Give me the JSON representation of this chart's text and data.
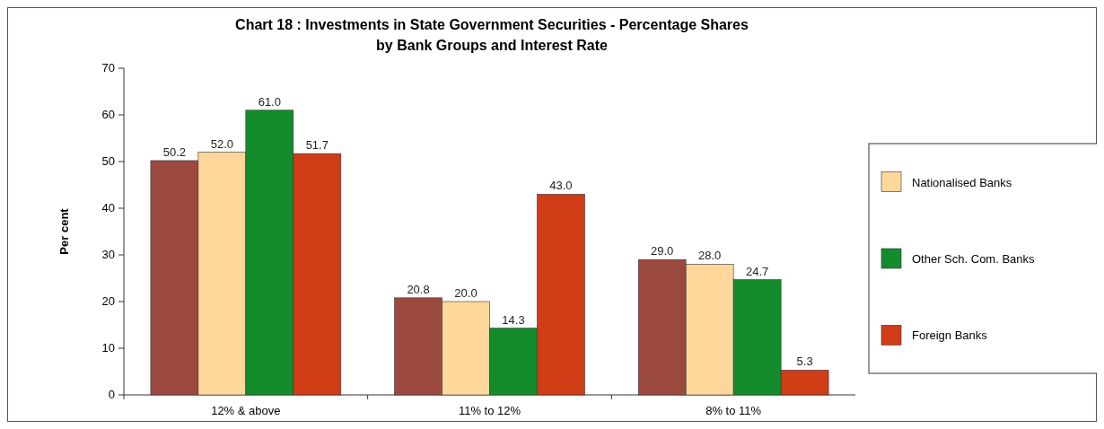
{
  "chart_data": {
    "type": "bar",
    "title": "Chart 18 : Investments in State Government Securities - Percentage Shares by Bank Groups and Interest Rate",
    "ylabel": "Per cent",
    "categories": [
      "12% & above",
      "11% to 12%",
      "8% to 11%"
    ],
    "series": [
      {
        "color": "#9c4a40",
        "values": [
          50.2,
          20.8,
          29.0
        ],
        "value_labels": [
          "50.2",
          "20.8",
          "29.0"
        ]
      },
      {
        "name": "Nationalised Banks",
        "color": "#ffd79a",
        "values": [
          52.0,
          20.0,
          28.0
        ],
        "value_labels": [
          "52.0",
          "20.0",
          "28.0"
        ]
      },
      {
        "name": "Other Sch. Com. Banks",
        "color": "#148c2c",
        "values": [
          61.0,
          14.3,
          24.7
        ],
        "value_labels": [
          "61.0",
          "14.3",
          "24.7"
        ]
      },
      {
        "name": "Foreign Banks",
        "color": "#d03c16",
        "values": [
          51.7,
          43.0,
          5.3
        ],
        "value_labels": [
          "51.7",
          "43.0",
          "5.3"
        ]
      }
    ],
    "ylim": [
      0,
      70
    ],
    "yticks": [
      0,
      10,
      20,
      30,
      40,
      50,
      60,
      70
    ],
    "legend": "right",
    "grid": false
  }
}
